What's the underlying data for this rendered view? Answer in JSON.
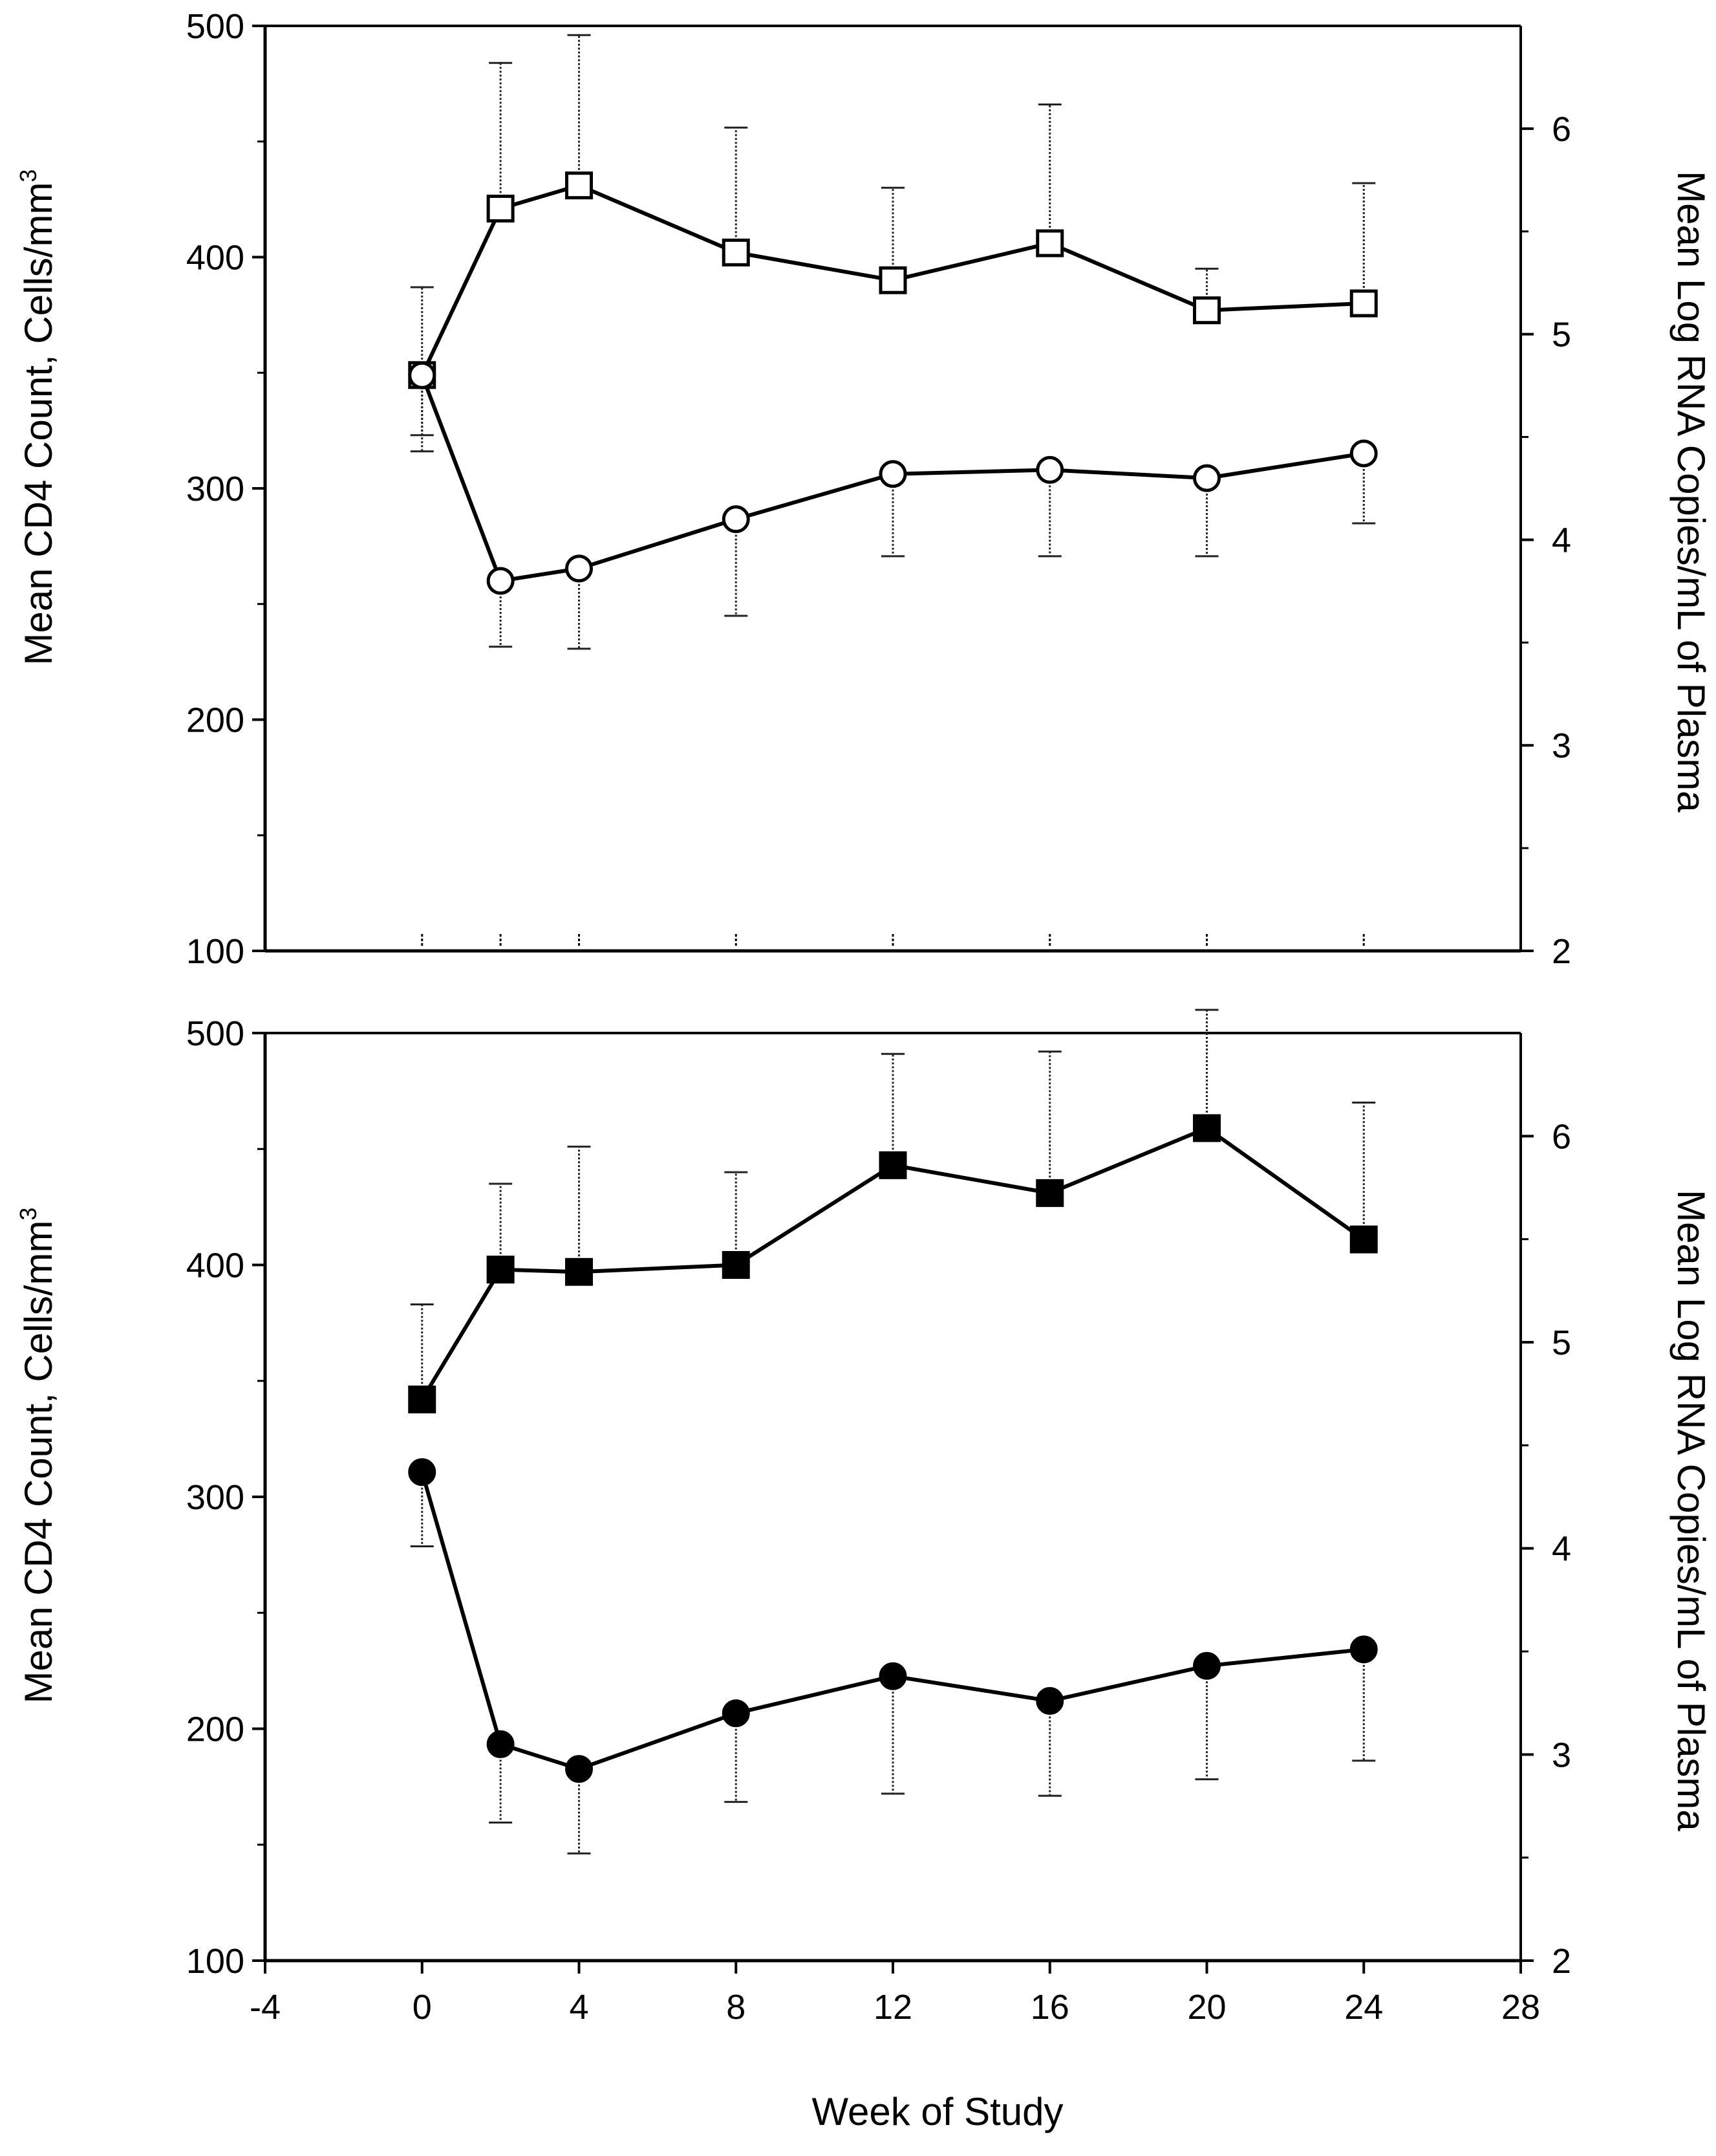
{
  "chart_data": [
    {
      "type": "line",
      "panel": "top",
      "x": [
        0,
        2,
        4,
        8,
        12,
        16,
        20,
        24
      ],
      "xlim": [
        -4,
        28
      ],
      "xticks": [
        "-4",
        "0",
        "4",
        "8",
        "12",
        "16",
        "20",
        "24",
        "28"
      ],
      "xlabel": "Week of Study",
      "ylabel_left": "Mean CD4 Count, Cells/mm",
      "ylabel_left_sup": "3",
      "ylabel_right": "Mean Log RNA Copies/mL of Plasma",
      "ylim_left": [
        100,
        500
      ],
      "ylim_right": [
        2,
        6.5
      ],
      "yticks_left": [
        "100",
        "200",
        "300",
        "400",
        "500"
      ],
      "yticks_right": [
        "2",
        "3",
        "4",
        "5",
        "6"
      ],
      "series": [
        {
          "name": "CD4 count",
          "axis": "left",
          "marker": "square-open",
          "values": [
            349,
            421,
            431,
            402,
            390,
            406,
            377,
            380
          ],
          "err_hi": [
            387,
            484,
            496,
            456,
            430,
            466,
            395,
            432
          ],
          "err_lo": [
            323,
            null,
            null,
            null,
            null,
            null,
            null,
            null
          ]
        },
        {
          "name": "Log RNA",
          "axis": "right",
          "marker": "circle-open",
          "values": [
            4.8,
            3.8,
            3.86,
            4.1,
            4.32,
            4.34,
            4.3,
            4.42
          ],
          "err_hi": [
            null,
            null,
            null,
            null,
            null,
            null,
            null,
            null
          ],
          "err_lo": [
            4.43,
            3.48,
            3.47,
            3.63,
            3.92,
            3.92,
            3.92,
            4.08
          ]
        }
      ]
    },
    {
      "type": "line",
      "panel": "bottom",
      "x": [
        0,
        2,
        4,
        8,
        12,
        16,
        20,
        24
      ],
      "xlim": [
        -4,
        28
      ],
      "xticks": [
        "-4",
        "0",
        "4",
        "8",
        "12",
        "16",
        "20",
        "24",
        "28"
      ],
      "xlabel": "Week of Study",
      "ylabel_left": "Mean CD4 Count, Cells/mm",
      "ylabel_left_sup": "3",
      "ylabel_right": "Mean Log RNA Copies/mL of Plasma",
      "ylim_left": [
        100,
        500
      ],
      "ylim_right": [
        2,
        6.5
      ],
      "yticks_left": [
        "100",
        "200",
        "300",
        "400",
        "500"
      ],
      "yticks_right": [
        "2",
        "3",
        "4",
        "5",
        "6"
      ],
      "series": [
        {
          "name": "CD4 count",
          "axis": "left",
          "marker": "square-filled",
          "values": [
            342,
            398,
            397,
            400,
            443,
            431,
            459,
            411
          ],
          "err_hi": [
            383,
            435,
            451,
            440,
            491,
            492,
            510,
            470
          ],
          "err_lo": [
            null,
            null,
            null,
            null,
            null,
            null,
            null,
            null
          ]
        },
        {
          "name": "Log RNA",
          "axis": "right",
          "marker": "circle-filled",
          "values": [
            4.37,
            3.05,
            2.93,
            3.2,
            3.38,
            3.26,
            3.43,
            3.51
          ],
          "err_hi": [
            null,
            null,
            null,
            null,
            null,
            null,
            null,
            null
          ],
          "err_lo": [
            4.01,
            2.67,
            2.52,
            2.77,
            2.81,
            2.8,
            2.88,
            2.97
          ]
        }
      ]
    }
  ]
}
